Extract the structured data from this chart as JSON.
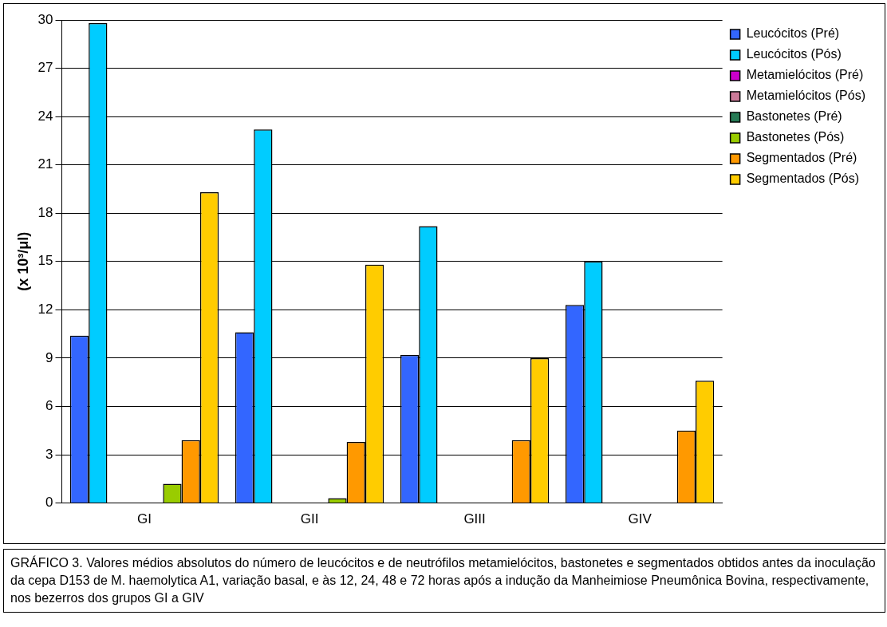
{
  "chart_data": {
    "type": "bar",
    "ylabel": "(x 10³/μl)",
    "categories": [
      "GI",
      "GII",
      "GIII",
      "GIV"
    ],
    "series": [
      {
        "name": "Leucócitos (Pré)",
        "color": "#3366ff",
        "values": [
          10.4,
          10.6,
          9.2,
          12.3
        ]
      },
      {
        "name": "Leucócitos (Pós)",
        "color": "#00ccff",
        "values": [
          29.8,
          23.2,
          17.2,
          15
        ]
      },
      {
        "name": "Metamielócitos (Pré)",
        "color": "#cc00cc",
        "values": [
          0,
          0,
          0,
          0
        ]
      },
      {
        "name": "Metamielócitos (Pós)",
        "color": "#cc7a99",
        "values": [
          0,
          0,
          0,
          0
        ]
      },
      {
        "name": "Bastonetes (Pré)",
        "color": "#267a55",
        "values": [
          0,
          0,
          0,
          0
        ]
      },
      {
        "name": "Bastonetes (Pós)",
        "color": "#99cc00",
        "values": [
          1.2,
          0.3,
          0,
          0
        ]
      },
      {
        "name": "Segmentados (Pré)",
        "color": "#ff9900",
        "values": [
          3.9,
          3.8,
          3.9,
          4.5
        ]
      },
      {
        "name": "Segmentados (Pós)",
        "color": "#ffcc00",
        "values": [
          19.3,
          14.8,
          9,
          7.6
        ]
      }
    ],
    "ylim": [
      0,
      30
    ],
    "yticks": [
      0,
      3,
      6,
      9,
      12,
      15,
      18,
      21,
      24,
      27,
      30
    ],
    "grid": "y",
    "legend": "top right",
    "annotations": [
      "GRÁFICO 3. Valores médios absolutos do número de leucócitos e de neutrófilos metamielócitos, bastonetes e segmentados obtidos antes da inoculação da cepa D153 de M. haemolytica A1, variação basal, e às 12, 24, 48 e 72 horas após a indução da Manheimiose Pneumônica Bovina, respectivamente, nos bezerros dos grupos GI a GIV"
    ]
  }
}
